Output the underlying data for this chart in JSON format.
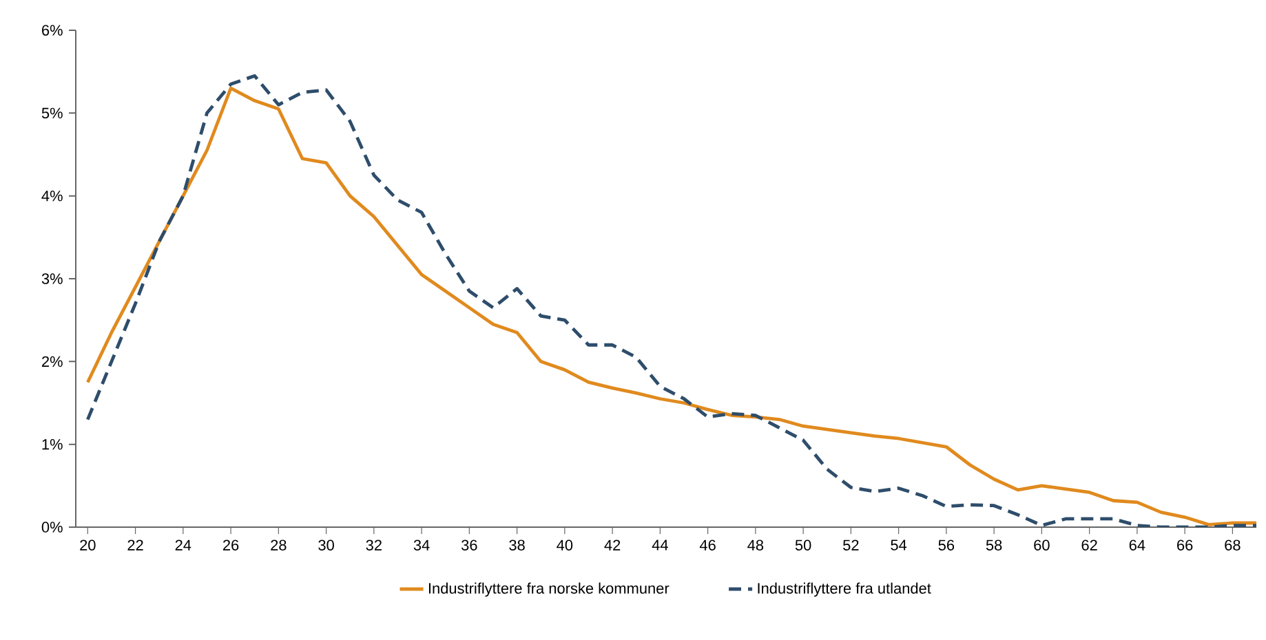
{
  "chart_data": {
    "type": "line",
    "x": [
      20,
      21,
      22,
      23,
      24,
      25,
      26,
      27,
      28,
      29,
      30,
      31,
      32,
      33,
      34,
      35,
      36,
      37,
      38,
      39,
      40,
      41,
      42,
      43,
      44,
      45,
      46,
      47,
      48,
      49,
      50,
      51,
      52,
      53,
      54,
      55,
      56,
      57,
      58,
      59,
      60,
      61,
      62,
      63,
      64,
      65,
      66,
      67,
      68,
      69
    ],
    "series": [
      {
        "name": "Industriflyttere fra norske kommuner",
        "color": "#e08a1e",
        "line_style": "solid",
        "values": [
          1.75,
          2.35,
          2.9,
          3.45,
          4.0,
          4.55,
          5.3,
          5.15,
          5.05,
          4.45,
          4.4,
          4.0,
          3.75,
          3.4,
          3.05,
          2.85,
          2.65,
          2.45,
          2.35,
          2.0,
          1.9,
          1.75,
          1.68,
          1.62,
          1.55,
          1.5,
          1.42,
          1.35,
          1.33,
          1.3,
          1.22,
          1.18,
          1.14,
          1.1,
          1.07,
          1.02,
          0.97,
          0.75,
          0.58,
          0.45,
          0.5,
          0.46,
          0.42,
          0.32,
          0.3,
          0.18,
          0.12,
          0.03,
          0.05,
          0.05
        ]
      },
      {
        "name": "Industriflyttere fra utlandet",
        "color": "#2e4d6b",
        "line_style": "dashed",
        "values": [
          1.3,
          2.0,
          2.7,
          3.45,
          4.0,
          5.0,
          5.35,
          5.45,
          5.1,
          5.25,
          5.28,
          4.9,
          4.25,
          3.95,
          3.8,
          3.3,
          2.85,
          2.65,
          2.88,
          2.55,
          2.5,
          2.2,
          2.2,
          2.05,
          1.7,
          1.55,
          1.33,
          1.37,
          1.35,
          1.2,
          1.05,
          0.7,
          0.48,
          0.43,
          0.47,
          0.38,
          0.25,
          0.27,
          0.26,
          0.15,
          0.02,
          0.1,
          0.1,
          0.1,
          0.02,
          0.0,
          0.0,
          0.0,
          0.02,
          0.02
        ]
      }
    ],
    "xlim": [
      19.5,
      69
    ],
    "xticks": [
      20,
      22,
      24,
      26,
      28,
      30,
      32,
      34,
      36,
      38,
      40,
      42,
      44,
      46,
      48,
      50,
      52,
      54,
      56,
      58,
      60,
      62,
      64,
      66,
      68
    ],
    "ylim": [
      0,
      6
    ],
    "yticks": [
      {
        "value": 0,
        "label": "0%"
      },
      {
        "value": 1,
        "label": "1%"
      },
      {
        "value": 2,
        "label": "2%"
      },
      {
        "value": 3,
        "label": "3%"
      },
      {
        "value": 4,
        "label": "4%"
      },
      {
        "value": 5,
        "label": "5%"
      },
      {
        "value": 6,
        "label": "6%"
      }
    ],
    "legend": "bottom"
  }
}
